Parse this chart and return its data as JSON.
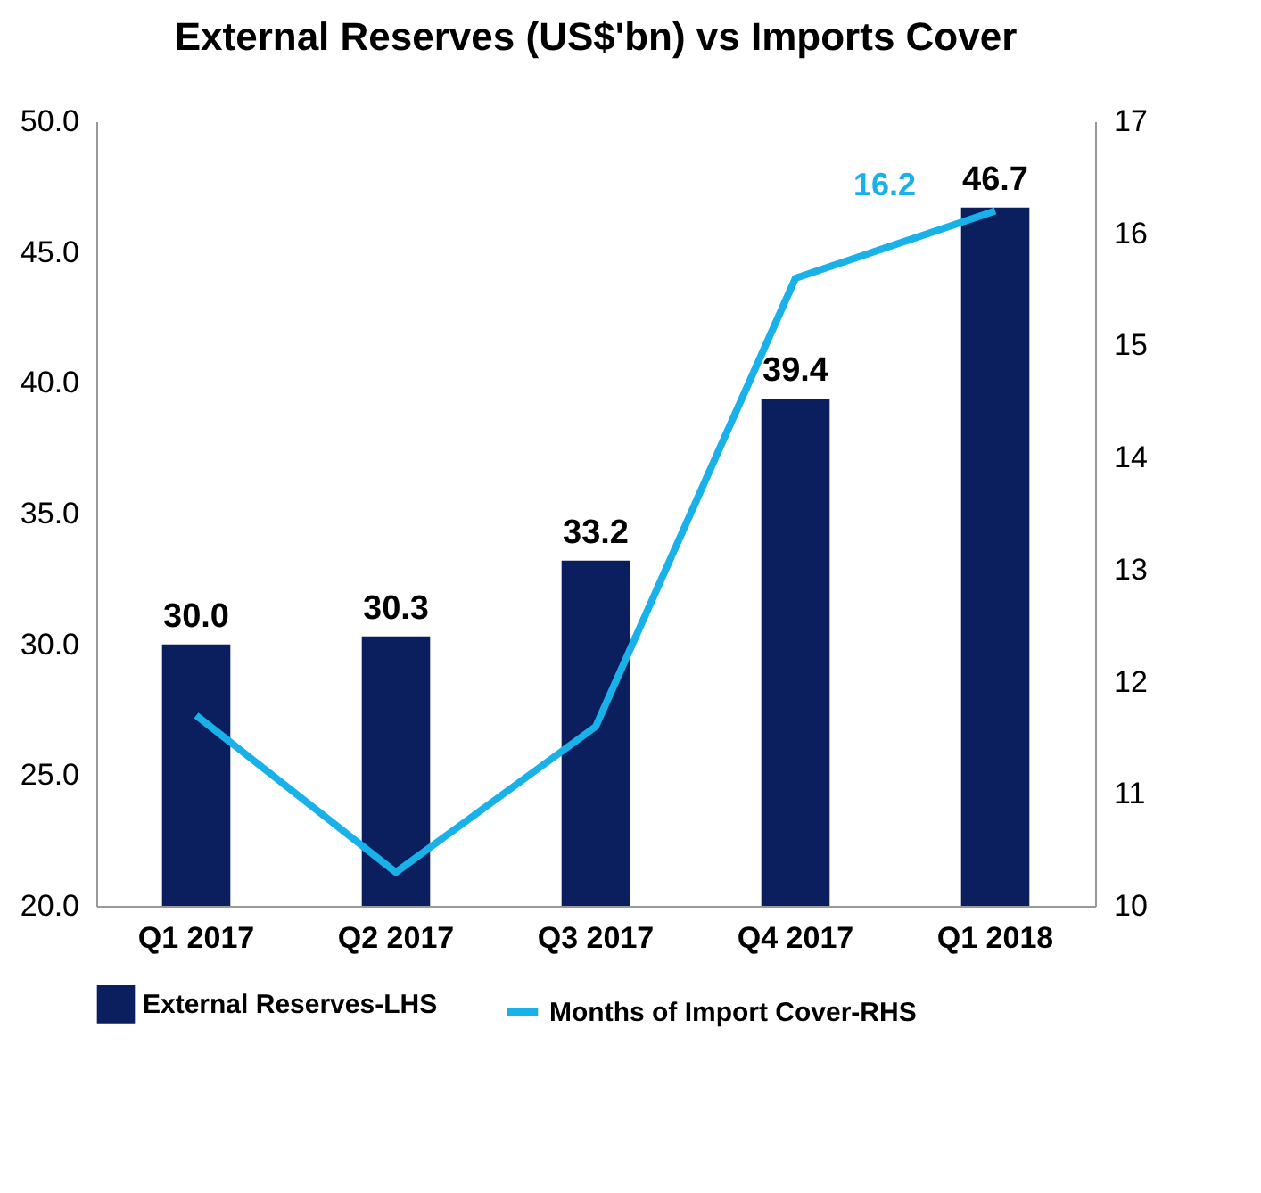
{
  "chart_data": {
    "type": "bar",
    "title": "External Reserves (US$'bn)  vs Imports Cover",
    "categories": [
      "Q1 2017",
      "Q2 2017",
      "Q3 2017",
      "Q4 2017",
      "Q1 2018"
    ],
    "series": [
      {
        "name": "External Reserves-LHS",
        "color": "#0b1f5e",
        "values": [
          30.0,
          30.3,
          33.2,
          39.4,
          46.7
        ],
        "value_labels": [
          "30.0",
          "30.3",
          "33.2",
          "39.4",
          "46.7"
        ]
      },
      {
        "name": "Months of Import Cover-RHS",
        "type": "line",
        "axis": "y2",
        "color": "#19b1ea",
        "values": [
          11.7,
          10.3,
          11.6,
          15.6,
          16.2
        ]
      }
    ],
    "ylim": [
      20,
      50
    ],
    "yticks": [
      {
        "value": 20,
        "label": "20.0"
      },
      {
        "value": 25,
        "label": "25.0"
      },
      {
        "value": 30,
        "label": "30.0"
      },
      {
        "value": 35,
        "label": "35.0"
      },
      {
        "value": 40,
        "label": "40.0"
      },
      {
        "value": 45,
        "label": "45.0"
      },
      {
        "value": 50,
        "label": "50.0"
      }
    ],
    "y2lim": [
      10,
      17
    ],
    "y2ticks": [
      10,
      11,
      12,
      13,
      14,
      15,
      16,
      17
    ],
    "annotations": [
      "16.2"
    ],
    "grid": false,
    "legend": "bottom",
    "marker": "none",
    "line_style": "solid"
  }
}
